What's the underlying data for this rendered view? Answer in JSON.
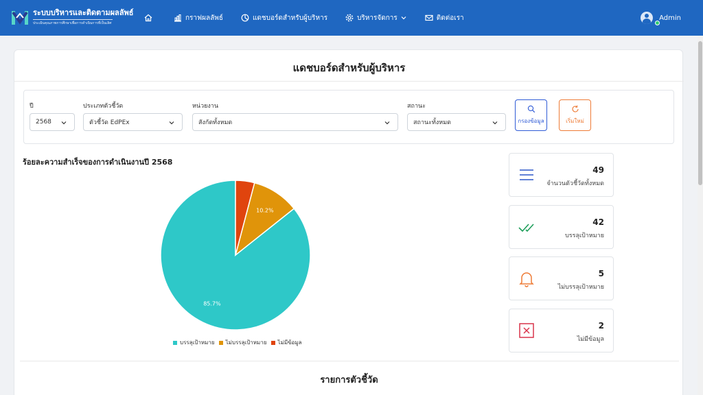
{
  "navbar": {
    "brand_title": "ระบบบริหารและติดตามผลลัพธ์",
    "brand_subtitle": "ประเมินคุณภาพการศึกษาเพื่อการดำเนินการที่เป็นเลิศ",
    "items": [
      {
        "label": "",
        "icon": "home-icon"
      },
      {
        "label": "กราฟผลลัพธ์",
        "icon": "bar-chart-icon"
      },
      {
        "label": "แดชบอร์ดสำหรับผู้บริหาร",
        "icon": "pie-chart-icon"
      },
      {
        "label": "บริหารจัดการ",
        "icon": "gear-icon"
      },
      {
        "label": "ติดต่อเรา",
        "icon": "mail-icon"
      }
    ],
    "user": "Admin"
  },
  "page": {
    "title": "แดชบอร์ดสำหรับผู้บริหาร",
    "section_title": "รายการตัวชี้วัด"
  },
  "filters": {
    "year_label": "ปี",
    "year_value": "2568",
    "type_label": "ประเภทตัวชี้วัด",
    "type_value": "ตัวชี้วัด EdPEx",
    "unit_label": "หน่วยงาน",
    "unit_value": "สังกัดทั้งหมด",
    "status_label": "สถานะ",
    "status_value": "สถานะทั้งหมด",
    "search_button": "กรองข้อมูล",
    "reset_button": "เริ่มใหม่"
  },
  "chart_data": {
    "type": "pie",
    "title": "ร้อยละความสำเร็จของการดำเนินงานปี 2568",
    "categories": [
      "บรรลุเป้าหมาย",
      "ไม่บรรลุเป้าหมาย",
      "ไม่มีข้อมูล"
    ],
    "values": [
      85.7,
      10.2,
      4.1
    ],
    "data_labels": [
      "85.7%",
      "10.2%",
      ""
    ],
    "colors": [
      "#2ec8c8",
      "#e0940a",
      "#e0440e"
    ],
    "legend": "bottom"
  },
  "stats": [
    {
      "value": "49",
      "label": "จำนวนตัวชี้วัดทั้งหมด",
      "icon": "list-icon",
      "color": "#4a6fd1"
    },
    {
      "value": "42",
      "label": "บรรลุเป้าหมาย",
      "icon": "double-check-icon",
      "color": "#1e9e5a"
    },
    {
      "value": "5",
      "label": "ไม่บรรลุเป้าหมาย",
      "icon": "bell-icon",
      "color": "#ee7b36"
    },
    {
      "value": "2",
      "label": "ไม่มีข้อมูล",
      "icon": "close-box-icon",
      "color": "#d9334a"
    }
  ]
}
